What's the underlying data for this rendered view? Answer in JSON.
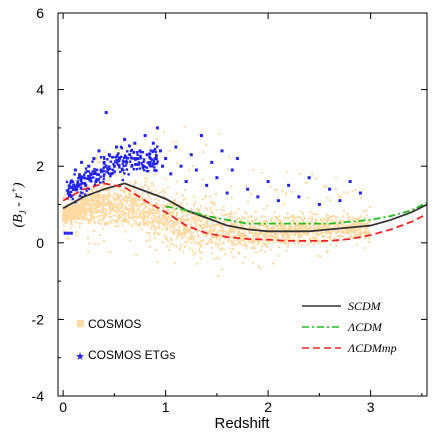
{
  "chart_data": {
    "type": "scatter",
    "title": "",
    "xlabel": "Redshift",
    "ylabel": "(B_J - r+)",
    "ylabel_parts": {
      "open": "(",
      "b": "B",
      "j": "J",
      "mid": " - ",
      "r": "r",
      "plus": "+",
      "close": ")"
    },
    "xlim": [
      -0.05,
      3.55
    ],
    "ylim": [
      -4,
      6
    ],
    "xticks": [
      0,
      1,
      2,
      3
    ],
    "yticks": [
      -4,
      -2,
      0,
      2,
      4,
      6
    ],
    "xtick_labels": [
      "0",
      "1",
      "2",
      "3"
    ],
    "ytick_labels": [
      "-4",
      "-2",
      "0",
      "2",
      "4",
      "6"
    ],
    "grid": false,
    "legend_placement": "bottom-left and bottom-right",
    "scatter_series": [
      {
        "name": "COSMOS",
        "color": "#ffd9a0",
        "marker": "square",
        "cloud_envelope": [
          {
            "x": 0.0,
            "low": 0.2,
            "high": 1.2,
            "mean": 0.75
          },
          {
            "x": 0.2,
            "low": -0.3,
            "high": 2.0,
            "mean": 0.9
          },
          {
            "x": 0.5,
            "low": -0.5,
            "high": 2.6,
            "mean": 1.0
          },
          {
            "x": 0.8,
            "low": -0.6,
            "high": 2.8,
            "mean": 0.9
          },
          {
            "x": 1.0,
            "low": -0.6,
            "high": 3.0,
            "mean": 0.6
          },
          {
            "x": 1.3,
            "low": -0.8,
            "high": 3.2,
            "mean": 0.45
          },
          {
            "x": 1.6,
            "low": -1.2,
            "high": 2.8,
            "mean": 0.3
          },
          {
            "x": 2.0,
            "low": -0.6,
            "high": 2.0,
            "mean": 0.3
          },
          {
            "x": 2.5,
            "low": -0.4,
            "high": 1.8,
            "mean": 0.35
          },
          {
            "x": 2.9,
            "low": -0.3,
            "high": 1.6,
            "mean": 0.4
          }
        ]
      },
      {
        "name": "COSMOS ETGs",
        "color": "#2222ee",
        "marker": "star",
        "points": [
          {
            "x": 0.05,
            "y": 1.3
          },
          {
            "x": 0.08,
            "y": 1.6
          },
          {
            "x": 0.1,
            "y": 1.4
          },
          {
            "x": 0.12,
            "y": 1.9
          },
          {
            "x": 0.15,
            "y": 1.5
          },
          {
            "x": 0.18,
            "y": 2.1
          },
          {
            "x": 0.2,
            "y": 1.7
          },
          {
            "x": 0.22,
            "y": 1.5
          },
          {
            "x": 0.25,
            "y": 2.0
          },
          {
            "x": 0.27,
            "y": 1.8
          },
          {
            "x": 0.3,
            "y": 2.2
          },
          {
            "x": 0.32,
            "y": 1.6
          },
          {
            "x": 0.35,
            "y": 2.4
          },
          {
            "x": 0.37,
            "y": 1.9
          },
          {
            "x": 0.4,
            "y": 2.1
          },
          {
            "x": 0.42,
            "y": 3.4
          },
          {
            "x": 0.45,
            "y": 2.3
          },
          {
            "x": 0.47,
            "y": 1.8
          },
          {
            "x": 0.5,
            "y": 2.0
          },
          {
            "x": 0.52,
            "y": 2.5
          },
          {
            "x": 0.55,
            "y": 2.2
          },
          {
            "x": 0.58,
            "y": 1.9
          },
          {
            "x": 0.6,
            "y": 2.7
          },
          {
            "x": 0.62,
            "y": 2.1
          },
          {
            "x": 0.65,
            "y": 2.3
          },
          {
            "x": 0.67,
            "y": 2.0
          },
          {
            "x": 0.7,
            "y": 2.6
          },
          {
            "x": 0.72,
            "y": 2.2
          },
          {
            "x": 0.75,
            "y": 2.4
          },
          {
            "x": 0.78,
            "y": 2.0
          },
          {
            "x": 0.8,
            "y": 2.8
          },
          {
            "x": 0.82,
            "y": 2.3
          },
          {
            "x": 0.85,
            "y": 2.1
          },
          {
            "x": 0.88,
            "y": 2.6
          },
          {
            "x": 0.9,
            "y": 2.2
          },
          {
            "x": 0.92,
            "y": 3.0
          },
          {
            "x": 0.95,
            "y": 2.4
          },
          {
            "x": 0.97,
            "y": 2.0
          },
          {
            "x": 1.0,
            "y": 2.2
          },
          {
            "x": 1.05,
            "y": 1.8
          },
          {
            "x": 1.1,
            "y": 2.5
          },
          {
            "x": 1.15,
            "y": 2.0
          },
          {
            "x": 1.2,
            "y": 1.6
          },
          {
            "x": 1.25,
            "y": 2.3
          },
          {
            "x": 1.3,
            "y": 1.9
          },
          {
            "x": 1.35,
            "y": 2.8
          },
          {
            "x": 1.4,
            "y": 1.5
          },
          {
            "x": 1.45,
            "y": 2.1
          },
          {
            "x": 1.5,
            "y": 1.7
          },
          {
            "x": 1.55,
            "y": 2.4
          },
          {
            "x": 1.6,
            "y": 1.3
          },
          {
            "x": 1.65,
            "y": 1.9
          },
          {
            "x": 1.7,
            "y": 2.2
          },
          {
            "x": 1.8,
            "y": 1.4
          },
          {
            "x": 1.9,
            "y": 1.2
          },
          {
            "x": 2.0,
            "y": 1.6
          },
          {
            "x": 2.1,
            "y": 1.1
          },
          {
            "x": 2.2,
            "y": 1.5
          },
          {
            "x": 2.3,
            "y": 1.2
          },
          {
            "x": 2.4,
            "y": 1.7
          },
          {
            "x": 2.5,
            "y": 1.0
          },
          {
            "x": 2.6,
            "y": 1.4
          },
          {
            "x": 2.7,
            "y": 1.1
          },
          {
            "x": 2.8,
            "y": 1.6
          },
          {
            "x": 2.9,
            "y": 1.3
          },
          {
            "x": 0.02,
            "y": 0.25
          },
          {
            "x": 0.05,
            "y": 0.25
          },
          {
            "x": 0.08,
            "y": 0.25
          }
        ]
      }
    ],
    "series": [
      {
        "name": "SCDM",
        "color": "#333333",
        "dash": "solid",
        "x": [
          0.0,
          0.2,
          0.4,
          0.6,
          0.8,
          1.0,
          1.2,
          1.4,
          1.6,
          1.8,
          2.0,
          2.2,
          2.4,
          2.6,
          2.8,
          3.0,
          3.2,
          3.4,
          3.55
        ],
        "y": [
          0.9,
          1.2,
          1.4,
          1.55,
          1.35,
          1.15,
          0.85,
          0.65,
          0.45,
          0.35,
          0.3,
          0.3,
          0.3,
          0.35,
          0.4,
          0.45,
          0.6,
          0.8,
          1.0
        ]
      },
      {
        "name": "ΛCDM",
        "color": "#22bb22",
        "dash": "dashdot",
        "x": [
          1.0,
          1.2,
          1.4,
          1.6,
          1.8,
          2.0,
          2.2,
          2.4,
          2.6,
          2.8,
          3.0,
          3.2,
          3.4,
          3.55
        ],
        "y": [
          0.95,
          0.85,
          0.7,
          0.6,
          0.5,
          0.5,
          0.5,
          0.5,
          0.5,
          0.55,
          0.6,
          0.7,
          0.85,
          1.05
        ]
      },
      {
        "name": "ΛCDMmp",
        "color": "#ee2222",
        "dash": "dashed",
        "x": [
          0.0,
          0.2,
          0.4,
          0.6,
          0.8,
          1.0,
          1.2,
          1.4,
          1.6,
          1.8,
          2.0,
          2.2,
          2.4,
          2.6,
          2.8,
          3.0,
          3.2,
          3.4,
          3.55
        ],
        "y": [
          1.1,
          1.4,
          1.55,
          1.45,
          1.1,
          0.8,
          0.45,
          0.25,
          0.15,
          0.1,
          0.08,
          0.05,
          0.05,
          0.05,
          0.1,
          0.2,
          0.35,
          0.55,
          0.75
        ]
      }
    ]
  },
  "legend_left": [
    {
      "label": "COSMOS",
      "icon": "square-marker-icon"
    },
    {
      "label": "COSMOS ETGs",
      "icon": "star-marker-icon"
    }
  ],
  "legend_right": [
    {
      "label": "SCDM"
    },
    {
      "label": "ΛCDM"
    },
    {
      "label": "ΛCDMmp"
    }
  ]
}
